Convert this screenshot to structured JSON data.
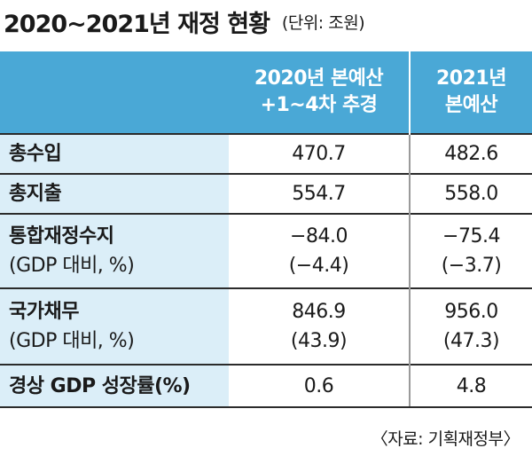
{
  "title": "2020~2021년 재정 현황",
  "unit": "(단위: 조원)",
  "table": {
    "headers": [
      {
        "line1": "",
        "line2": ""
      },
      {
        "line1": "2020년 본예산",
        "line2": "+1~4차 추경"
      },
      {
        "line1": "2021년",
        "line2": "본예산"
      }
    ],
    "rows": [
      {
        "label1": "총수입",
        "label2": "",
        "v2020_1": "470.7",
        "v2020_2": "",
        "v2021_1": "482.6",
        "v2021_2": ""
      },
      {
        "label1": "총지출",
        "label2": "",
        "v2020_1": "554.7",
        "v2020_2": "",
        "v2021_1": "558.0",
        "v2021_2": ""
      },
      {
        "label1": "통합재정수지",
        "label2": "(GDP 대비, %)",
        "v2020_1": "−84.0",
        "v2020_2": "(−4.4)",
        "v2021_1": "−75.4",
        "v2021_2": "(−3.7)"
      },
      {
        "label1": "국가채무",
        "label2": "(GDP 대비, %)",
        "v2020_1": "846.9",
        "v2020_2": "(43.9)",
        "v2021_1": "956.0",
        "v2021_2": "(47.3)"
      },
      {
        "label1": "경상 GDP 성장률(%)",
        "label2": "",
        "v2020_1": "0.6",
        "v2020_2": "",
        "v2021_1": "4.8",
        "v2021_2": ""
      }
    ]
  },
  "source": "〈자료: 기획재정부〉"
}
